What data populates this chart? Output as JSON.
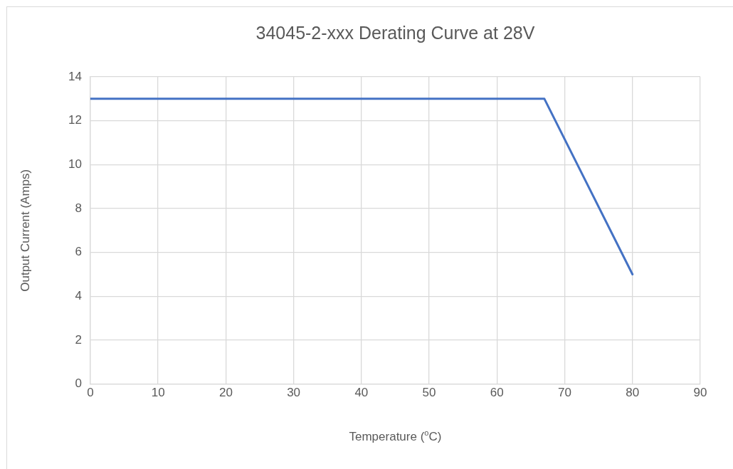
{
  "chart_data": {
    "type": "line",
    "title": "34045-2-xxx Derating Curve at 28V",
    "xlabel": "Temperature ($^{o}$C)",
    "ylabel": "Output Current (Amps)",
    "x": [
      0,
      67,
      80
    ],
    "series": [
      {
        "color": "#4472c4",
        "values": [
          13,
          13,
          5
        ]
      }
    ],
    "xlim": [
      0,
      90
    ],
    "xticks": [
      0,
      10,
      20,
      30,
      40,
      50,
      60,
      70,
      80,
      90
    ],
    "ylim": [
      0,
      14
    ],
    "yticks": [
      0,
      2,
      4,
      6,
      8,
      10,
      12,
      14
    ],
    "grid": true,
    "legend": false,
    "marker": "none",
    "line_style": "solid"
  }
}
